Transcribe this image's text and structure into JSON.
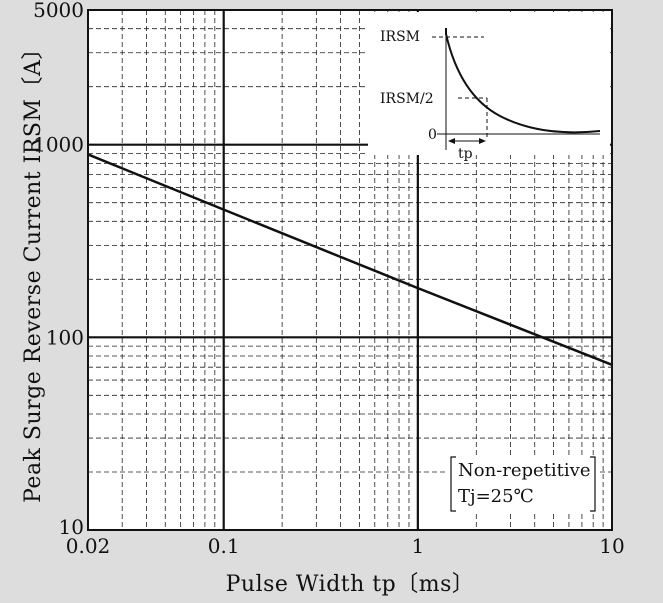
{
  "chart_data": {
    "type": "line",
    "xlabel": "Pulse Width  tp〔ms〕",
    "ylabel": "Peak Surge Reverse Current  IRSM〔A〕",
    "x_scale": "log",
    "y_scale": "log",
    "xlim": [
      0.02,
      10
    ],
    "ylim": [
      10,
      5000
    ],
    "x_ticks": [
      {
        "value": 0.02,
        "label": "0.02"
      },
      {
        "value": 0.1,
        "label": "0.1"
      },
      {
        "value": 1,
        "label": "1"
      },
      {
        "value": 10,
        "label": "10"
      }
    ],
    "y_ticks": [
      {
        "value": 10,
        "label": "10"
      },
      {
        "value": 100,
        "label": "100"
      },
      {
        "value": 1000,
        "label": "1000"
      },
      {
        "value": 5000,
        "label": "5000"
      }
    ],
    "grid": true,
    "series": [
      {
        "x": [
          0.02,
          0.1,
          1,
          10
        ],
        "y": [
          890,
          460,
          180,
          72
        ]
      }
    ],
    "note_lines": [
      "Non-repetitive",
      "Tj=25℃"
    ],
    "inset": {
      "label_peak": "IRSM",
      "label_half": "IRSM/2",
      "label_zero": "0",
      "label_tp": "tp"
    },
    "colors": {
      "background": "#dddddd",
      "plot": "#ffffff",
      "line": "#111111",
      "grid": "#222222"
    }
  }
}
